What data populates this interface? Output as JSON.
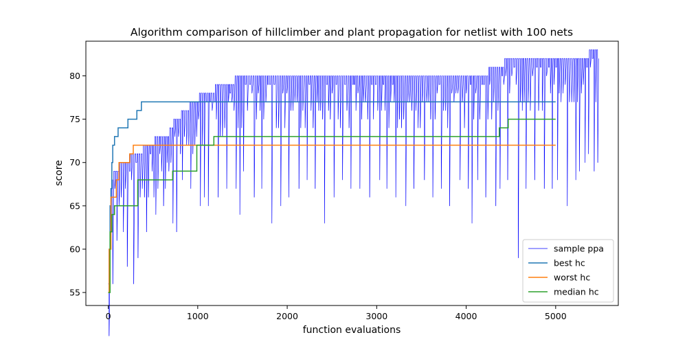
{
  "chart_data": {
    "type": "line",
    "title": "Algorithm comparison of hillclimber and plant propagation for netlist with 100 nets",
    "xlabel": "function evaluations",
    "ylabel": "score",
    "xlim": [
      -250,
      5700
    ],
    "ylim": [
      53.5,
      84
    ],
    "xticks": [
      0,
      1000,
      2000,
      3000,
      4000,
      5000
    ],
    "yticks": [
      55,
      60,
      65,
      70,
      75,
      80
    ],
    "grid": false,
    "legend_position": "bottom-right",
    "series": [
      {
        "name": "sample ppa",
        "color": "#0000ff",
        "style": "thin-oscillating",
        "envelope_top": [
          [
            0,
            56
          ],
          [
            20,
            66
          ],
          [
            40,
            68
          ],
          [
            80,
            69
          ],
          [
            150,
            70
          ],
          [
            300,
            71
          ],
          [
            450,
            72
          ],
          [
            550,
            72.8
          ],
          [
            650,
            73
          ],
          [
            750,
            75
          ],
          [
            850,
            76
          ],
          [
            950,
            77
          ],
          [
            1050,
            78
          ],
          [
            1250,
            78.8
          ],
          [
            1400,
            79.5
          ],
          [
            1500,
            79.8
          ],
          [
            3000,
            79.8
          ],
          [
            4200,
            79.8
          ],
          [
            4250,
            80.8
          ],
          [
            4500,
            81.8
          ],
          [
            5350,
            81.8
          ],
          [
            5370,
            82.8
          ],
          [
            5400,
            82.5
          ],
          [
            5450,
            82.8
          ]
        ],
        "drop_minimums": [
          [
            30,
            56
          ],
          [
            80,
            61
          ],
          [
            150,
            62
          ],
          [
            200,
            58
          ],
          [
            250,
            56
          ],
          [
            300,
            59
          ],
          [
            400,
            62
          ],
          [
            500,
            64
          ],
          [
            600,
            65
          ],
          [
            700,
            63
          ],
          [
            750,
            62
          ],
          [
            800,
            68
          ],
          [
            900,
            67
          ],
          [
            1000,
            65
          ],
          [
            1050,
            66
          ],
          [
            1100,
            65
          ],
          [
            1200,
            66
          ],
          [
            1300,
            67
          ],
          [
            1400,
            67
          ],
          [
            1450,
            64
          ],
          [
            1500,
            69
          ],
          [
            1600,
            66
          ],
          [
            1700,
            67
          ],
          [
            1800,
            63
          ],
          [
            1900,
            65
          ],
          [
            2000,
            66
          ],
          [
            2100,
            67
          ],
          [
            2200,
            68
          ],
          [
            2300,
            67
          ],
          [
            2400,
            63
          ],
          [
            2500,
            66
          ],
          [
            2600,
            68
          ],
          [
            2700,
            67
          ],
          [
            2800,
            67
          ],
          [
            2900,
            66
          ],
          [
            3000,
            68
          ],
          [
            3100,
            67
          ],
          [
            3200,
            66
          ],
          [
            3300,
            65
          ],
          [
            3400,
            67
          ],
          [
            3500,
            68
          ],
          [
            3600,
            66
          ],
          [
            3700,
            67
          ],
          [
            3800,
            65
          ],
          [
            3900,
            68
          ],
          [
            4000,
            67
          ],
          [
            4050,
            63
          ],
          [
            4100,
            68
          ],
          [
            4200,
            66
          ],
          [
            4300,
            65
          ],
          [
            4350,
            67
          ],
          [
            4450,
            68
          ],
          [
            4550,
            59
          ],
          [
            4650,
            67
          ],
          [
            4750,
            68
          ],
          [
            4850,
            67
          ],
          [
            4950,
            67
          ],
          [
            5000,
            68
          ],
          [
            5100,
            65
          ],
          [
            5200,
            68
          ],
          [
            5250,
            69
          ],
          [
            5300,
            70
          ],
          [
            5350,
            71
          ],
          [
            5400,
            69
          ],
          [
            5450,
            70
          ]
        ]
      },
      {
        "name": "best hc",
        "color": "#1f77b4",
        "step_points": [
          [
            0,
            55
          ],
          [
            10,
            60
          ],
          [
            20,
            65
          ],
          [
            30,
            67
          ],
          [
            40,
            70
          ],
          [
            50,
            72
          ],
          [
            70,
            73
          ],
          [
            110,
            74
          ],
          [
            220,
            75
          ],
          [
            320,
            76
          ],
          [
            370,
            77
          ],
          [
            5000,
            77
          ]
        ]
      },
      {
        "name": "worst hc",
        "color": "#ff7f0e",
        "step_points": [
          [
            0,
            55
          ],
          [
            10,
            60
          ],
          [
            30,
            66
          ],
          [
            90,
            68
          ],
          [
            120,
            70
          ],
          [
            240,
            71
          ],
          [
            280,
            72
          ],
          [
            5000,
            72
          ]
        ]
      },
      {
        "name": "median hc",
        "color": "#2ca02c",
        "step_points": [
          [
            0,
            55
          ],
          [
            20,
            62
          ],
          [
            40,
            64
          ],
          [
            70,
            65
          ],
          [
            330,
            68
          ],
          [
            720,
            69
          ],
          [
            990,
            72
          ],
          [
            1180,
            73
          ],
          [
            4370,
            74
          ],
          [
            4470,
            75
          ],
          [
            5000,
            75
          ]
        ]
      }
    ]
  }
}
